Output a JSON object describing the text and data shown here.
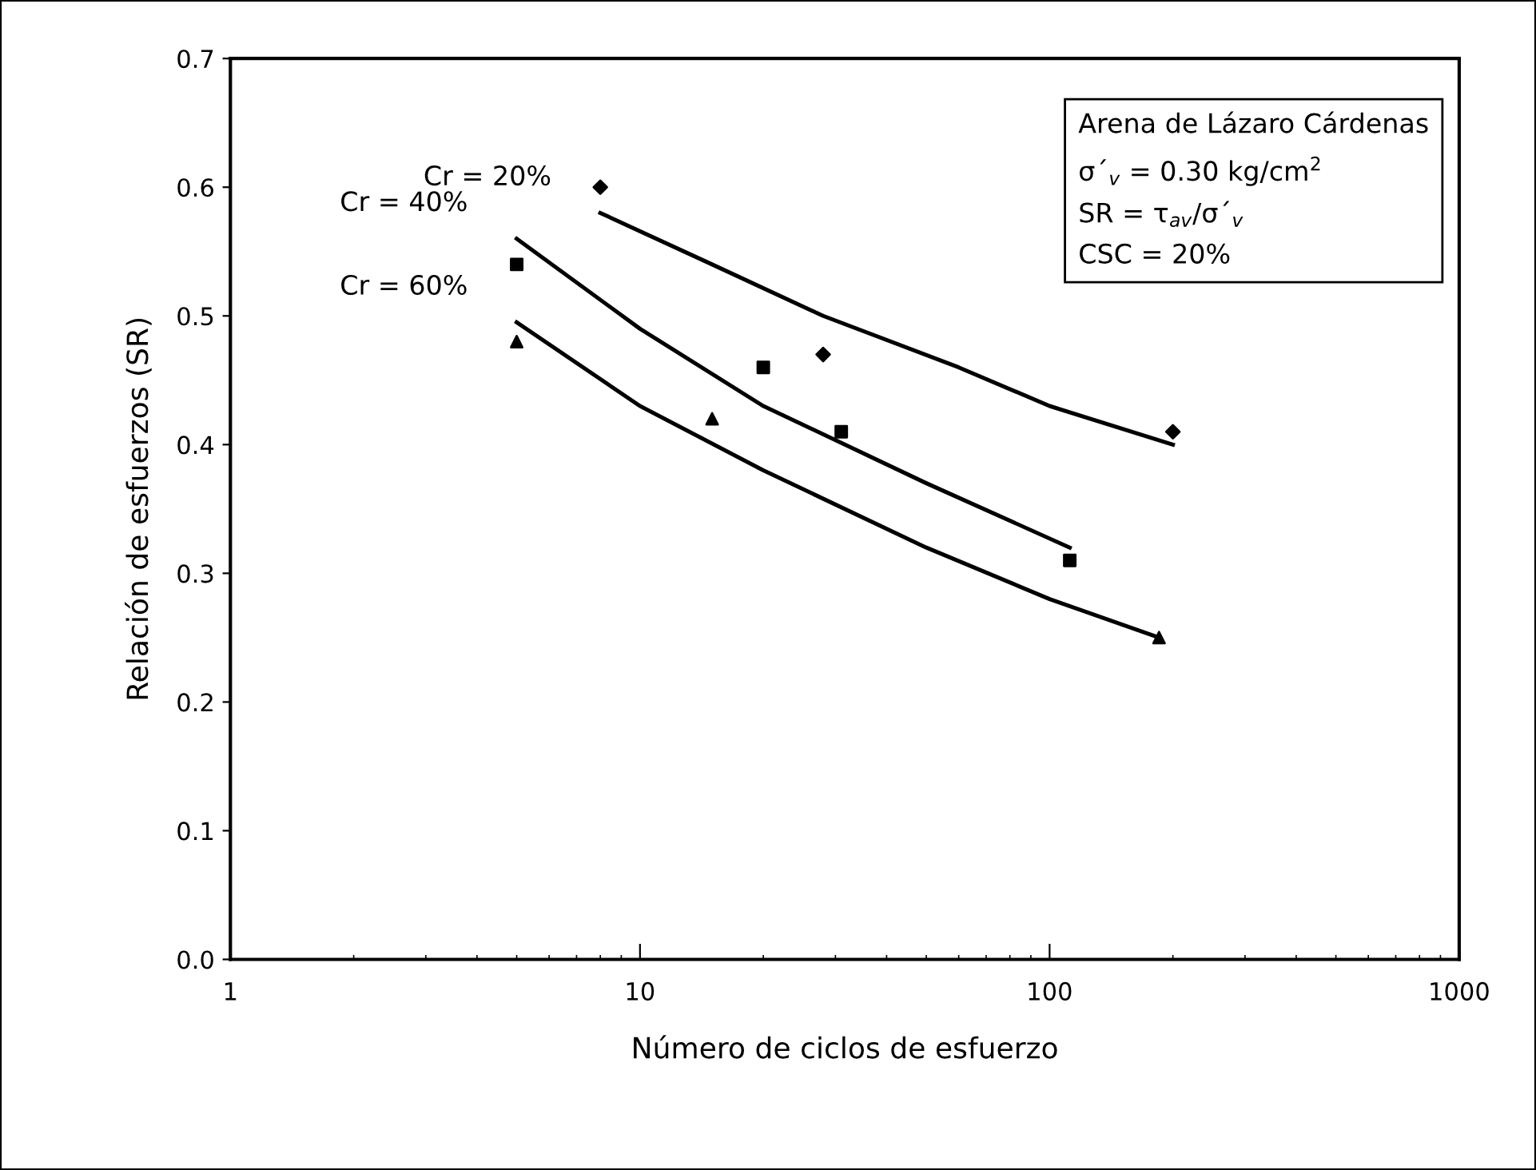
{
  "chart_data": {
    "type": "scatter",
    "xlabel": "Número de ciclos de esfuerzo",
    "ylabel": "Relación de esfuerzos (SR)",
    "log": "x",
    "xlim": [
      1,
      1000
    ],
    "xticks": [
      1,
      10,
      100,
      1000
    ],
    "ylim": [
      0,
      0.7
    ],
    "yticks": [
      {
        "value": 0,
        "label": "0.0"
      },
      0.1,
      0.2,
      0.3,
      0.4,
      0.5,
      0.6,
      0.7
    ],
    "grid": false,
    "legend": false,
    "annotations": [
      "Arena de Lázaro Cárdenas",
      "σ´$_{v}$ = 0.30 kg/cm$^{2}$",
      "SR = τ$_{av}$/σ´$_{v}$",
      "CSC = 20%"
    ],
    "series": [
      {
        "marker": "diamond",
        "color": "#000000",
        "x": [
          8,
          28,
          200
        ],
        "values": [
          0.6,
          0.47,
          0.41
        ]
      },
      {
        "marker": "square",
        "color": "#000000",
        "x": [
          5,
          20,
          31,
          112
        ],
        "values": [
          0.54,
          0.46,
          0.41,
          0.31
        ]
      },
      {
        "marker": "triangle",
        "color": "#000000",
        "x": [
          5,
          15,
          185
        ],
        "values": [
          0.48,
          0.42,
          0.25
        ]
      },
      {
        "type": "line",
        "name": "Cr = 20%",
        "marker": "none",
        "line_style": "solid",
        "color": "#000000",
        "x": [
          8,
          15,
          28,
          60,
          100,
          200
        ],
        "values": [
          0.58,
          0.54,
          0.5,
          0.46,
          0.43,
          0.4
        ]
      },
      {
        "type": "line",
        "name": "Cr = 40%",
        "marker": "none",
        "line_style": "solid",
        "color": "#000000",
        "x": [
          5,
          10,
          20,
          50,
          112
        ],
        "values": [
          0.56,
          0.49,
          0.43,
          0.37,
          0.32
        ]
      },
      {
        "type": "line",
        "name": "Cr = 60%",
        "marker": "none",
        "line_style": "solid",
        "color": "#000000",
        "x": [
          5,
          10,
          20,
          50,
          100,
          185
        ],
        "values": [
          0.495,
          0.43,
          0.38,
          0.32,
          0.28,
          0.25
        ]
      }
    ]
  }
}
